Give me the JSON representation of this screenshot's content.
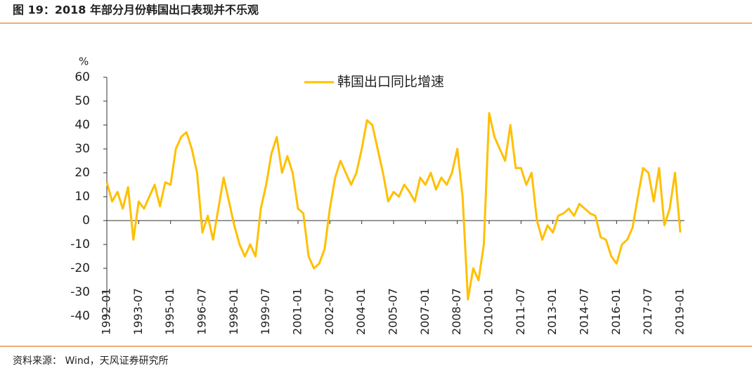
{
  "header": {
    "title": "图 19：2018 年部分月份韩国出口表现并不乐观"
  },
  "chart_data": {
    "type": "line",
    "y_label": "%",
    "categories": [
      "1992-01",
      null,
      null,
      null,
      null,
      null,
      "1993-07",
      null,
      null,
      null,
      null,
      null,
      "1995-01",
      null,
      null,
      null,
      null,
      null,
      "1996-07",
      null,
      null,
      null,
      null,
      null,
      "1998-01",
      null,
      null,
      null,
      null,
      null,
      "1999-07",
      null,
      null,
      null,
      null,
      null,
      "2001-01",
      null,
      null,
      null,
      null,
      null,
      "2002-07",
      null,
      null,
      null,
      null,
      null,
      "2004-01",
      null,
      null,
      null,
      null,
      null,
      "2005-07",
      null,
      null,
      null,
      null,
      null,
      "2007-01",
      null,
      null,
      null,
      null,
      null,
      "2008-07",
      null,
      null,
      null,
      null,
      null,
      "2010-01",
      null,
      null,
      null,
      null,
      null,
      "2011-07",
      null,
      null,
      null,
      null,
      null,
      "2013-01",
      null,
      null,
      null,
      null,
      null,
      "2014-07",
      null,
      null,
      null,
      null,
      null,
      "2016-01",
      null,
      null,
      null,
      null,
      null,
      "2017-07",
      null,
      null,
      null,
      null,
      null,
      "2019-01"
    ],
    "series": [
      {
        "name": "韩国出口同比增速",
        "color": "#ffc000",
        "values": [
          16,
          8,
          12,
          5,
          14,
          -8,
          8,
          5,
          10,
          15,
          6,
          16,
          15,
          30,
          35,
          37,
          30,
          20,
          -5,
          2,
          -8,
          5,
          18,
          8,
          -2,
          -10,
          -15,
          -10,
          -15,
          5,
          15,
          28,
          35,
          20,
          27,
          20,
          5,
          3,
          -15,
          -20,
          -18,
          -12,
          5,
          18,
          25,
          20,
          15,
          20,
          30,
          42,
          40,
          30,
          20,
          8,
          12,
          10,
          15,
          12,
          8,
          18,
          15,
          20,
          13,
          18,
          15,
          20,
          30,
          10,
          -33,
          -20,
          -25,
          -10,
          45,
          35,
          30,
          25,
          40,
          22,
          22,
          15,
          20,
          0,
          -8,
          -2,
          -5,
          2,
          3,
          5,
          2,
          7,
          5,
          3,
          2,
          -7,
          -8,
          -15,
          -18,
          -10,
          -8,
          -3,
          10,
          22,
          20,
          8,
          22,
          -2,
          5,
          20,
          -5
        ]
      }
    ],
    "ylim": [
      -40,
      60
    ],
    "yticks": [
      -40,
      -30,
      -20,
      -10,
      0,
      10,
      20,
      30,
      40,
      50,
      60
    ],
    "grid": false,
    "legend": "top"
  },
  "footer": {
    "source": "资料来源： Wind，天风证券研究所"
  }
}
